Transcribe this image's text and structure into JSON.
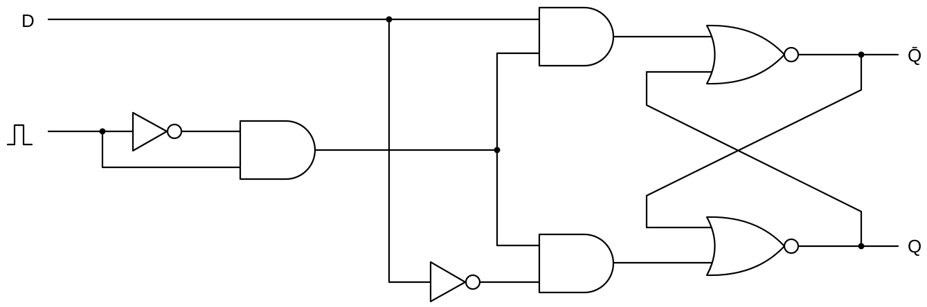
{
  "diagram": {
    "labels": {
      "d_input": "D",
      "q_bar_output": "Q̄",
      "q_output": "Q"
    },
    "clock_input": "clock-pulse-icon",
    "stroke_color": "#000000",
    "background_color": "#ffffff"
  }
}
